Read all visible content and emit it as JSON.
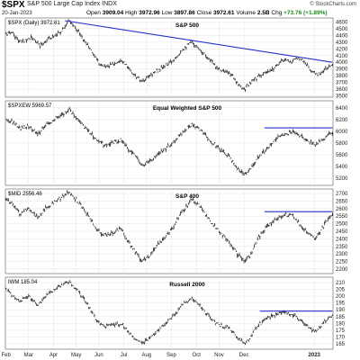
{
  "header": {
    "symbol": "$SPX",
    "name": "S&P 500 Large Cap Index  INDX",
    "date": "20-Jan-2023",
    "open_label": "Open",
    "open": "3909.04",
    "high_label": "High",
    "high": "3972.96",
    "low_label": "Low",
    "low": "3897.86",
    "close_label": "Close",
    "close": "3972.61",
    "volume_label": "Volume",
    "volume": "2.5B",
    "chg_label": "Chg",
    "chg": "+73.76 (+1.89%)",
    "brand": "© StockCharts.com"
  },
  "x_axis": {
    "labels": [
      "Feb",
      "Mar",
      "Apr",
      "May",
      "Jun",
      "Jul",
      "Aug",
      "Sep",
      "Oct",
      "Nov",
      "Dec",
      "2023"
    ]
  },
  "chart_data": [
    {
      "type": "bar",
      "label": "$SPX (Daily) 3972.61",
      "title": "S&P 500",
      "yticks": [
        3500,
        3600,
        3700,
        3800,
        3900,
        4000,
        4100,
        4200,
        4300,
        4400,
        4500,
        4600
      ],
      "ylim": [
        3480,
        4660
      ],
      "anchors": [
        [
          0,
          4420
        ],
        [
          5,
          4450
        ],
        [
          12,
          4300
        ],
        [
          22,
          4370
        ],
        [
          30,
          4250
        ],
        [
          40,
          4380
        ],
        [
          48,
          4450
        ],
        [
          55,
          4620
        ],
        [
          62,
          4500
        ],
        [
          66,
          4400
        ],
        [
          72,
          4250
        ],
        [
          78,
          4100
        ],
        [
          84,
          3950
        ],
        [
          90,
          3950
        ],
        [
          96,
          3980
        ],
        [
          102,
          4050
        ],
        [
          108,
          3900
        ],
        [
          114,
          3800
        ],
        [
          120,
          3700
        ],
        [
          128,
          3820
        ],
        [
          136,
          3900
        ],
        [
          146,
          4010
        ],
        [
          156,
          4200
        ],
        [
          164,
          4300
        ],
        [
          172,
          4180
        ],
        [
          180,
          4030
        ],
        [
          186,
          3930
        ],
        [
          194,
          3850
        ],
        [
          200,
          3800
        ],
        [
          205,
          3650
        ],
        [
          211,
          3600
        ],
        [
          216,
          3700
        ],
        [
          222,
          3780
        ],
        [
          228,
          3830
        ],
        [
          234,
          3870
        ],
        [
          240,
          3980
        ],
        [
          246,
          4050
        ],
        [
          252,
          4000
        ],
        [
          258,
          4080
        ],
        [
          264,
          3990
        ],
        [
          270,
          3850
        ],
        [
          276,
          3820
        ],
        [
          282,
          3900
        ],
        [
          288,
          3970
        ]
      ],
      "trendline": {
        "from": [
          52,
          4620
        ],
        "to": [
          288,
          4000
        ]
      },
      "trendline_color": "#2233cc"
    },
    {
      "type": "bar",
      "label": "$SPXEW 5969.57",
      "title": "Equal Weighted S&P 500",
      "yticks": [
        5200,
        5400,
        5600,
        5800,
        6000,
        6200,
        6400
      ],
      "ylim": [
        5080,
        6520
      ],
      "anchors": [
        [
          0,
          6200
        ],
        [
          6,
          6160
        ],
        [
          12,
          6050
        ],
        [
          20,
          6100
        ],
        [
          28,
          5950
        ],
        [
          36,
          6110
        ],
        [
          46,
          6250
        ],
        [
          56,
          6360
        ],
        [
          62,
          6250
        ],
        [
          68,
          6100
        ],
        [
          74,
          5980
        ],
        [
          80,
          5850
        ],
        [
          86,
          5780
        ],
        [
          94,
          5800
        ],
        [
          102,
          5860
        ],
        [
          108,
          5700
        ],
        [
          114,
          5580
        ],
        [
          120,
          5430
        ],
        [
          128,
          5520
        ],
        [
          136,
          5640
        ],
        [
          146,
          5780
        ],
        [
          156,
          6000
        ],
        [
          164,
          6130
        ],
        [
          172,
          6020
        ],
        [
          180,
          5850
        ],
        [
          188,
          5700
        ],
        [
          196,
          5590
        ],
        [
          204,
          5380
        ],
        [
          211,
          5260
        ],
        [
          216,
          5380
        ],
        [
          222,
          5540
        ],
        [
          230,
          5700
        ],
        [
          238,
          5880
        ],
        [
          246,
          5960
        ],
        [
          254,
          6000
        ],
        [
          260,
          5920
        ],
        [
          266,
          5860
        ],
        [
          272,
          5760
        ],
        [
          278,
          5840
        ],
        [
          284,
          5930
        ],
        [
          288,
          5970
        ]
      ],
      "trendline": {
        "from": [
          228,
          6060
        ],
        "to": [
          288,
          6060
        ]
      },
      "trendline_color": "#2233cc"
    },
    {
      "type": "bar",
      "label": "$MID 2556.46",
      "title": "S&P 400",
      "yticks": [
        2200,
        2250,
        2300,
        2350,
        2400,
        2450,
        2500,
        2550,
        2600,
        2650,
        2700
      ],
      "ylim": [
        2170,
        2730
      ],
      "anchors": [
        [
          0,
          2660
        ],
        [
          6,
          2630
        ],
        [
          12,
          2570
        ],
        [
          20,
          2600
        ],
        [
          28,
          2540
        ],
        [
          36,
          2610
        ],
        [
          46,
          2660
        ],
        [
          56,
          2710
        ],
        [
          62,
          2660
        ],
        [
          68,
          2600
        ],
        [
          74,
          2540
        ],
        [
          80,
          2460
        ],
        [
          86,
          2420
        ],
        [
          94,
          2440
        ],
        [
          102,
          2470
        ],
        [
          108,
          2380
        ],
        [
          114,
          2310
        ],
        [
          120,
          2250
        ],
        [
          128,
          2300
        ],
        [
          136,
          2380
        ],
        [
          146,
          2460
        ],
        [
          156,
          2590
        ],
        [
          164,
          2660
        ],
        [
          172,
          2610
        ],
        [
          180,
          2520
        ],
        [
          188,
          2450
        ],
        [
          196,
          2390
        ],
        [
          204,
          2300
        ],
        [
          211,
          2250
        ],
        [
          216,
          2300
        ],
        [
          222,
          2400
        ],
        [
          230,
          2480
        ],
        [
          238,
          2530
        ],
        [
          246,
          2560
        ],
        [
          254,
          2550
        ],
        [
          260,
          2490
        ],
        [
          266,
          2440
        ],
        [
          272,
          2400
        ],
        [
          278,
          2460
        ],
        [
          284,
          2530
        ],
        [
          288,
          2556
        ]
      ],
      "trendline": {
        "from": [
          228,
          2580
        ],
        "to": [
          288,
          2580
        ]
      },
      "trendline_color": "#2233cc"
    },
    {
      "type": "bar",
      "label": "IWM 185.04",
      "title": "Russell 2000",
      "yticks": [
        165,
        170,
        175,
        180,
        185,
        190,
        195,
        200,
        205,
        210
      ],
      "ylim": [
        161,
        214
      ],
      "anchors": [
        [
          0,
          206
        ],
        [
          6,
          200
        ],
        [
          12,
          196
        ],
        [
          20,
          200
        ],
        [
          28,
          193
        ],
        [
          36,
          201
        ],
        [
          46,
          207
        ],
        [
          56,
          211
        ],
        [
          62,
          205
        ],
        [
          68,
          199
        ],
        [
          74,
          191
        ],
        [
          80,
          182
        ],
        [
          86,
          178
        ],
        [
          94,
          179
        ],
        [
          102,
          180
        ],
        [
          108,
          174
        ],
        [
          114,
          169
        ],
        [
          120,
          165
        ],
        [
          128,
          170
        ],
        [
          136,
          176
        ],
        [
          146,
          184
        ],
        [
          156,
          194
        ],
        [
          164,
          199
        ],
        [
          172,
          192
        ],
        [
          180,
          184
        ],
        [
          188,
          179
        ],
        [
          196,
          177
        ],
        [
          204,
          170
        ],
        [
          211,
          165
        ],
        [
          216,
          170
        ],
        [
          222,
          178
        ],
        [
          230,
          184
        ],
        [
          238,
          186
        ],
        [
          246,
          188
        ],
        [
          254,
          186
        ],
        [
          260,
          182
        ],
        [
          266,
          178
        ],
        [
          272,
          174
        ],
        [
          278,
          178
        ],
        [
          284,
          184
        ],
        [
          288,
          185
        ]
      ],
      "trendline": {
        "from": [
          224,
          189
        ],
        "to": [
          288,
          189
        ]
      },
      "trendline_color": "#2233cc"
    }
  ]
}
